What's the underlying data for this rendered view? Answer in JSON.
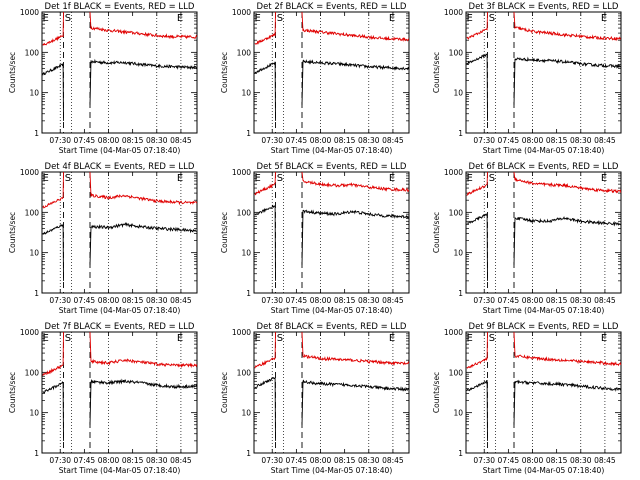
{
  "colors": {
    "events": "#000000",
    "lld": "#e00000",
    "axis": "#000000",
    "background": "#ffffff"
  },
  "common": {
    "ylabel": "Counts/sec",
    "xlabel": "Start Time (04-Mar-05 07:18:40)",
    "x_ticks": [
      "07:30",
      "07:45",
      "08:00",
      "08:15",
      "08:30",
      "08:45"
    ],
    "y_ticks": [
      "1",
      "10",
      "100",
      "1000"
    ],
    "markers": {
      "E": "E",
      "S": "S"
    }
  },
  "chart_data": [
    {
      "type": "line",
      "title": "Det 1f BLACK = Events, RED = LLD",
      "xlim": [
        "07:18:40",
        "08:55"
      ],
      "ylim": [
        1,
        1000
      ],
      "y_scale": "log",
      "series": [
        {
          "name": "Events",
          "color": "#000000",
          "x": [
            "07:34",
            "07:47",
            "08:00",
            "08:10",
            "08:20",
            "08:30",
            "08:40",
            "08:53"
          ],
          "values": [
            50,
            60,
            55,
            56,
            50,
            46,
            44,
            42
          ]
        },
        {
          "name": "LLD",
          "color": "#e00000",
          "x": [
            "07:34",
            "07:47",
            "08:00",
            "08:10",
            "08:20",
            "08:30",
            "08:40",
            "08:53"
          ],
          "values": [
            260,
            420,
            350,
            320,
            290,
            260,
            245,
            240
          ]
        }
      ]
    },
    {
      "type": "line",
      "title": "Det 2f BLACK = Events, RED = LLD",
      "xlim": [
        "07:18:40",
        "08:55"
      ],
      "ylim": [
        1,
        1000
      ],
      "y_scale": "log",
      "series": [
        {
          "name": "Events",
          "color": "#000000",
          "x": [
            "07:34",
            "07:47",
            "08:00",
            "08:10",
            "08:20",
            "08:30",
            "08:40",
            "08:53"
          ],
          "values": [
            55,
            60,
            55,
            52,
            48,
            44,
            42,
            40
          ]
        },
        {
          "name": "LLD",
          "color": "#e00000",
          "x": [
            "07:34",
            "07:47",
            "08:00",
            "08:10",
            "08:20",
            "08:30",
            "08:40",
            "08:53"
          ],
          "values": [
            280,
            360,
            320,
            290,
            260,
            240,
            220,
            210
          ]
        }
      ]
    },
    {
      "type": "line",
      "title": "Det 3f BLACK = Events, RED = LLD",
      "xlim": [
        "07:18:40",
        "08:55"
      ],
      "ylim": [
        1,
        1000
      ],
      "y_scale": "log",
      "series": [
        {
          "name": "Events",
          "color": "#000000",
          "x": [
            "07:34",
            "07:47",
            "08:00",
            "08:10",
            "08:20",
            "08:30",
            "08:40",
            "08:53"
          ],
          "values": [
            90,
            70,
            65,
            62,
            58,
            52,
            48,
            45
          ]
        },
        {
          "name": "LLD",
          "color": "#e00000",
          "x": [
            "07:34",
            "07:47",
            "08:00",
            "08:10",
            "08:20",
            "08:30",
            "08:40",
            "08:53"
          ],
          "values": [
            380,
            430,
            330,
            300,
            270,
            250,
            230,
            220
          ]
        }
      ]
    },
    {
      "type": "line",
      "title": "Det 4f BLACK = Events, RED = LLD",
      "xlim": [
        "07:18:40",
        "08:55"
      ],
      "ylim": [
        1,
        1000
      ],
      "y_scale": "log",
      "series": [
        {
          "name": "Events",
          "color": "#000000",
          "x": [
            "07:34",
            "07:47",
            "08:00",
            "08:10",
            "08:20",
            "08:30",
            "08:40",
            "08:53"
          ],
          "values": [
            50,
            45,
            42,
            50,
            44,
            40,
            38,
            35
          ]
        },
        {
          "name": "LLD",
          "color": "#e00000",
          "x": [
            "07:34",
            "07:47",
            "08:00",
            "08:10",
            "08:20",
            "08:30",
            "08:40",
            "08:53"
          ],
          "values": [
            230,
            270,
            230,
            260,
            220,
            190,
            180,
            170
          ]
        }
      ]
    },
    {
      "type": "line",
      "title": "Det 5f BLACK = Events, RED = LLD",
      "xlim": [
        "07:18:40",
        "08:55"
      ],
      "ylim": [
        1,
        1000
      ],
      "y_scale": "log",
      "series": [
        {
          "name": "Events",
          "color": "#000000",
          "x": [
            "07:34",
            "07:47",
            "08:00",
            "08:10",
            "08:20",
            "08:30",
            "08:40",
            "08:53"
          ],
          "values": [
            150,
            110,
            95,
            90,
            105,
            90,
            82,
            78
          ]
        },
        {
          "name": "LLD",
          "color": "#e00000",
          "x": [
            "07:34",
            "07:47",
            "08:00",
            "08:10",
            "08:20",
            "08:30",
            "08:40",
            "08:53"
          ],
          "values": [
            500,
            600,
            500,
            460,
            480,
            420,
            380,
            360
          ]
        }
      ]
    },
    {
      "type": "line",
      "title": "Det 6f BLACK = Events, RED = LLD",
      "xlim": [
        "07:18:40",
        "08:55"
      ],
      "ylim": [
        1,
        1000
      ],
      "y_scale": "log",
      "series": [
        {
          "name": "Events",
          "color": "#000000",
          "x": [
            "07:34",
            "07:47",
            "08:00",
            "08:10",
            "08:20",
            "08:30",
            "08:40",
            "08:53"
          ],
          "values": [
            90,
            75,
            62,
            60,
            72,
            60,
            55,
            52
          ]
        },
        {
          "name": "LLD",
          "color": "#e00000",
          "x": [
            "07:34",
            "07:47",
            "08:00",
            "08:10",
            "08:20",
            "08:30",
            "08:40",
            "08:53"
          ],
          "values": [
            480,
            700,
            520,
            480,
            470,
            400,
            360,
            330
          ]
        }
      ]
    },
    {
      "type": "line",
      "title": "Det 7f BLACK = Events, RED = LLD",
      "xlim": [
        "07:18:40",
        "08:55"
      ],
      "ylim": [
        1,
        1000
      ],
      "y_scale": "log",
      "series": [
        {
          "name": "Events",
          "color": "#000000",
          "x": [
            "07:34",
            "07:47",
            "08:00",
            "08:10",
            "08:20",
            "08:30",
            "08:40",
            "08:53"
          ],
          "values": [
            55,
            60,
            55,
            60,
            55,
            48,
            44,
            45
          ]
        },
        {
          "name": "LLD",
          "color": "#e00000",
          "x": [
            "07:34",
            "07:47",
            "08:00",
            "08:10",
            "08:20",
            "08:30",
            "08:40",
            "08:53"
          ],
          "values": [
            150,
            190,
            170,
            200,
            180,
            160,
            150,
            150
          ]
        }
      ]
    },
    {
      "type": "line",
      "title": "Det 8f BLACK = Events, RED = LLD",
      "xlim": [
        "07:18:40",
        "08:55"
      ],
      "ylim": [
        1,
        1000
      ],
      "y_scale": "log",
      "series": [
        {
          "name": "Events",
          "color": "#000000",
          "x": [
            "07:34",
            "07:47",
            "08:00",
            "08:10",
            "08:20",
            "08:30",
            "08:40",
            "08:53"
          ],
          "values": [
            75,
            60,
            52,
            50,
            48,
            44,
            40,
            38
          ]
        },
        {
          "name": "LLD",
          "color": "#e00000",
          "x": [
            "07:34",
            "07:47",
            "08:00",
            "08:10",
            "08:20",
            "08:30",
            "08:40",
            "08:53"
          ],
          "values": [
            230,
            260,
            220,
            210,
            200,
            185,
            175,
            165
          ]
        }
      ]
    },
    {
      "type": "line",
      "title": "Det 9f BLACK = Events, RED = LLD",
      "xlim": [
        "07:18:40",
        "08:55"
      ],
      "ylim": [
        1,
        1000
      ],
      "y_scale": "log",
      "series": [
        {
          "name": "Events",
          "color": "#000000",
          "x": [
            "07:34",
            "07:47",
            "08:00",
            "08:10",
            "08:20",
            "08:30",
            "08:40",
            "08:53"
          ],
          "values": [
            60,
            58,
            55,
            52,
            50,
            45,
            42,
            38
          ]
        },
        {
          "name": "LLD",
          "color": "#e00000",
          "x": [
            "07:34",
            "07:47",
            "08:00",
            "08:10",
            "08:20",
            "08:30",
            "08:40",
            "08:53"
          ],
          "values": [
            220,
            260,
            230,
            210,
            200,
            185,
            175,
            160
          ]
        }
      ]
    }
  ]
}
